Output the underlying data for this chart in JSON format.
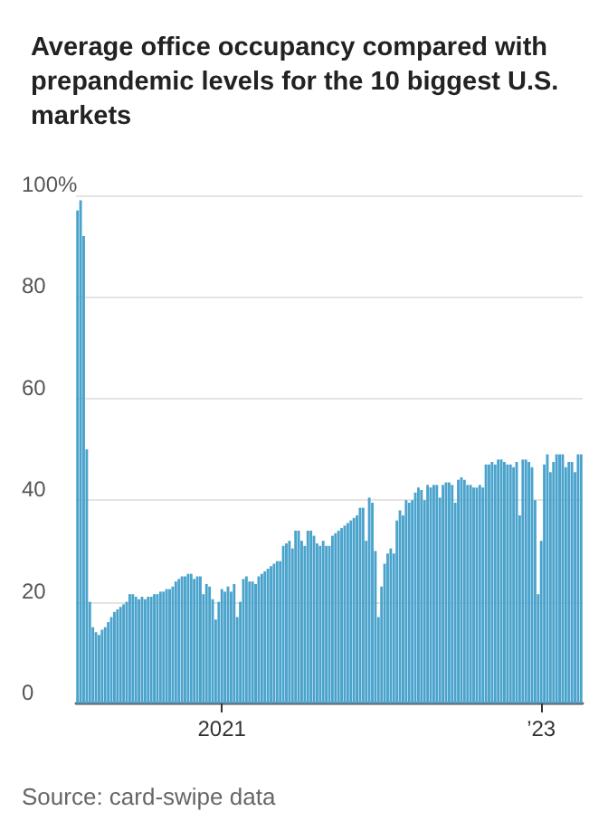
{
  "chart_data": {
    "type": "bar",
    "title": "Average office occupancy compared with prepandemic levels for the 10 biggest U.S. markets",
    "categories": [
      null,
      null,
      null,
      null,
      null,
      null,
      null,
      null,
      null,
      null,
      null,
      null,
      null,
      null,
      null,
      null,
      null,
      null,
      null,
      null,
      null,
      null,
      null,
      null,
      null,
      null,
      null,
      null,
      null,
      null,
      null,
      null,
      null,
      null,
      null,
      null,
      null,
      null,
      null,
      null,
      null,
      null,
      null,
      null,
      null,
      null,
      null,
      "2021",
      null,
      null,
      null,
      null,
      null,
      null,
      null,
      null,
      null,
      null,
      null,
      null,
      null,
      null,
      null,
      null,
      null,
      null,
      null,
      null,
      null,
      null,
      null,
      null,
      null,
      null,
      null,
      null,
      null,
      null,
      null,
      null,
      null,
      null,
      null,
      null,
      null,
      null,
      null,
      null,
      null,
      null,
      null,
      null,
      null,
      null,
      null,
      null,
      null,
      null,
      null,
      null,
      null,
      null,
      null,
      null,
      null,
      null,
      null,
      null,
      null,
      null,
      null,
      null,
      null,
      null,
      null,
      null,
      null,
      null,
      null,
      null,
      null,
      null,
      null,
      null,
      null,
      null,
      null,
      null,
      null,
      null,
      null,
      null,
      null,
      null,
      null,
      null,
      null,
      null,
      null,
      null,
      null,
      null,
      null,
      null,
      null,
      null,
      null,
      null,
      null,
      null,
      null,
      "’23",
      null,
      null,
      null,
      null,
      null,
      null,
      null,
      null,
      null,
      null,
      null,
      null,
      null
    ],
    "values": [
      97,
      99,
      92,
      50,
      20,
      15,
      14,
      13.5,
      14.5,
      15,
      16,
      17,
      18,
      18.5,
      19,
      19.5,
      20,
      21.5,
      21.5,
      21,
      20.5,
      21,
      20.5,
      21,
      21,
      21.5,
      21.5,
      22,
      22,
      22.5,
      22.5,
      23,
      24,
      24.5,
      25,
      25,
      25.5,
      25.5,
      24.5,
      25,
      25,
      21.5,
      23.5,
      23,
      20.5,
      16.5,
      20,
      22.5,
      22,
      23,
      22,
      23.5,
      17,
      20,
      24.5,
      25,
      24,
      24,
      23.5,
      25,
      25.5,
      26,
      26.5,
      27,
      27.5,
      28,
      28,
      31,
      31.5,
      32,
      30.5,
      34,
      34,
      32,
      31,
      34,
      34,
      33,
      31.5,
      31,
      32,
      31,
      31,
      33,
      33.5,
      34,
      34.5,
      35,
      35.5,
      36,
      36.5,
      37,
      38.5,
      38.5,
      32,
      40.5,
      39.5,
      30,
      17,
      23,
      27.5,
      29.5,
      30.5,
      29.5,
      36,
      38,
      37,
      40,
      39.5,
      40,
      41.5,
      42.5,
      42,
      40,
      43,
      42.5,
      43,
      43,
      40.5,
      43,
      43.5,
      43.5,
      43,
      39.5,
      44,
      44.5,
      44,
      43,
      43,
      42.5,
      42.5,
      43,
      42.5,
      47,
      47,
      47.5,
      47,
      48,
      48,
      47.5,
      47,
      47,
      46.5,
      47.5,
      37,
      48,
      48,
      47.5,
      46.5,
      40,
      21.5,
      32,
      47,
      49,
      45.5,
      47.5,
      49,
      49,
      49,
      46.5,
      47.5,
      47.5,
      45.5,
      49,
      49
    ],
    "color": "#4aa3cc",
    "ylim": [
      0,
      100
    ],
    "yticks": [
      {
        "value": 100,
        "label": "100%"
      },
      80,
      60,
      40,
      20,
      0
    ],
    "grid": "y",
    "annotations": [
      "Source: card-swipe data"
    ]
  }
}
